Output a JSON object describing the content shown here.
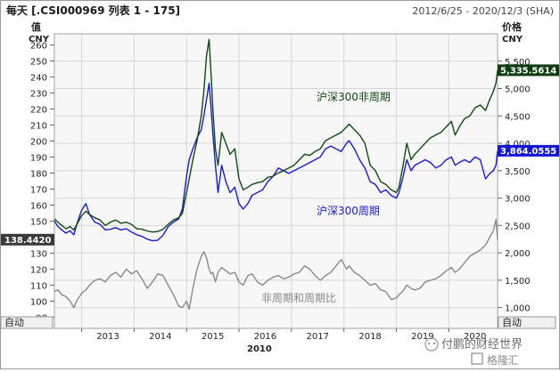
{
  "header": {
    "title": "每天 [.CSI000969 列表 1 - 175]",
    "date_range": "2012/6/25 - 2020/12/3 (SHA)"
  },
  "left_axis": {
    "label_line1": "值",
    "label_line2": "CNY",
    "auto_label": "自动",
    "ticks": [
      90,
      100,
      110,
      120,
      130,
      140,
      150,
      160,
      170,
      180,
      190,
      200,
      210,
      220,
      230,
      240,
      250,
      260
    ],
    "tick_labels": [
      "90",
      "100",
      "110",
      "120",
      "130",
      "140",
      "150",
      "160",
      "170",
      "180",
      "190",
      "200",
      "210",
      "220",
      "230",
      "240",
      "250",
      "260"
    ],
    "current_badge": "138.4420"
  },
  "right_axis": {
    "label_line1": "价格",
    "label_line2": "CNY",
    "auto_label": "自动",
    "ticks": [
      1000,
      1500,
      2000,
      2500,
      3000,
      3500,
      4000,
      4500,
      5000,
      5500
    ],
    "tick_labels": [
      "1,000",
      "1,500",
      "2,000",
      "2,500",
      "3,000",
      "3,500",
      "4,000",
      "4,500",
      "5,000",
      "5,500"
    ],
    "badge_green": "5,335.5614",
    "badge_blue": "3,864.0555"
  },
  "x_axis": {
    "year_labels": [
      "2013",
      "2014",
      "2015",
      "2016",
      "2017",
      "2018",
      "2019",
      "2020"
    ],
    "year_values": [
      2013,
      2014,
      2015,
      2016,
      2017,
      2018,
      2019,
      2020
    ],
    "center_label": "2010"
  },
  "annotations": {
    "green": "沪深300非周期",
    "blue": "沪深300周期",
    "gray": "非周期和周期比"
  },
  "watermark": {
    "line1": "付鹏的财经世界",
    "line2": "格隆汇"
  },
  "colors": {
    "green": "#0e4a12",
    "blue": "#1a1adc",
    "gray": "#8a8a8a",
    "grid": "#d6d6d6",
    "badge_green_bg": "#0f3d12",
    "badge_blue_bg": "#1515d6",
    "badge_dark_bg": "#3a3a3a"
  },
  "chart_data": {
    "type": "line",
    "xlim": [
      2012.48,
      2020.93
    ],
    "y_left_lim": [
      83,
      267
    ],
    "y_right_lim": [
      620,
      6000
    ],
    "series": [
      {
        "name": "沪深300非周期",
        "axis": "right",
        "x": [
          2012.48,
          2012.55,
          2012.62,
          2012.7,
          2012.78,
          2012.85,
          2012.92,
          2013.0,
          2013.08,
          2013.15,
          2013.25,
          2013.35,
          2013.45,
          2013.55,
          2013.65,
          2013.75,
          2013.85,
          2013.95,
          2014.05,
          2014.15,
          2014.25,
          2014.35,
          2014.45,
          2014.55,
          2014.65,
          2014.75,
          2014.85,
          2014.92,
          2015.0,
          2015.05,
          2015.12,
          2015.2,
          2015.28,
          2015.33,
          2015.38,
          2015.43,
          2015.47,
          2015.5,
          2015.55,
          2015.6,
          2015.67,
          2015.75,
          2015.83,
          2015.92,
          2016.0,
          2016.08,
          2016.17,
          2016.25,
          2016.35,
          2016.45,
          2016.55,
          2016.65,
          2016.75,
          2016.85,
          2016.95,
          2017.05,
          2017.15,
          2017.25,
          2017.35,
          2017.45,
          2017.55,
          2017.65,
          2017.75,
          2017.85,
          2017.95,
          2018.05,
          2018.1,
          2018.2,
          2018.3,
          2018.4,
          2018.5,
          2018.6,
          2018.7,
          2018.8,
          2018.9,
          2019.0,
          2019.05,
          2019.12,
          2019.2,
          2019.28,
          2019.35,
          2019.45,
          2019.55,
          2019.65,
          2019.75,
          2019.85,
          2019.95,
          2020.05,
          2020.12,
          2020.2,
          2020.3,
          2020.4,
          2020.5,
          2020.6,
          2020.7,
          2020.78,
          2020.85,
          2020.9,
          2020.93
        ],
        "y": [
          2620,
          2560,
          2500,
          2440,
          2480,
          2420,
          2540,
          2680,
          2760,
          2700,
          2640,
          2600,
          2500,
          2560,
          2600,
          2540,
          2560,
          2520,
          2440,
          2430,
          2400,
          2380,
          2390,
          2430,
          2520,
          2600,
          2640,
          2720,
          3100,
          3350,
          3700,
          4050,
          4500,
          4950,
          5600,
          5900,
          5200,
          4650,
          3900,
          3600,
          4200,
          4000,
          3800,
          3900,
          3350,
          3150,
          3200,
          3250,
          3280,
          3300,
          3380,
          3400,
          3460,
          3500,
          3550,
          3600,
          3700,
          3800,
          3780,
          3850,
          3900,
          4050,
          4100,
          4150,
          4200,
          4300,
          4350,
          4250,
          4150,
          4000,
          3600,
          3500,
          3300,
          3250,
          3150,
          3100,
          3200,
          3550,
          4000,
          3700,
          3800,
          3900,
          4000,
          4100,
          4150,
          4200,
          4300,
          4400,
          4150,
          4300,
          4450,
          4500,
          4650,
          4700,
          4600,
          4800,
          4950,
          5100,
          5335.5614
        ]
      },
      {
        "name": "沪深300周期",
        "axis": "right",
        "x": [
          2012.48,
          2012.55,
          2012.62,
          2012.7,
          2012.78,
          2012.85,
          2012.92,
          2013.0,
          2013.08,
          2013.15,
          2013.25,
          2013.35,
          2013.45,
          2013.55,
          2013.65,
          2013.75,
          2013.85,
          2013.95,
          2014.05,
          2014.15,
          2014.25,
          2014.35,
          2014.45,
          2014.55,
          2014.65,
          2014.75,
          2014.85,
          2014.92,
          2015.0,
          2015.05,
          2015.12,
          2015.2,
          2015.28,
          2015.33,
          2015.38,
          2015.43,
          2015.47,
          2015.5,
          2015.55,
          2015.6,
          2015.67,
          2015.75,
          2015.83,
          2015.92,
          2016.0,
          2016.08,
          2016.17,
          2016.25,
          2016.35,
          2016.45,
          2016.55,
          2016.65,
          2016.75,
          2016.85,
          2016.95,
          2017.05,
          2017.15,
          2017.25,
          2017.35,
          2017.45,
          2017.55,
          2017.65,
          2017.75,
          2017.85,
          2017.95,
          2018.05,
          2018.1,
          2018.2,
          2018.3,
          2018.4,
          2018.5,
          2018.6,
          2018.7,
          2018.8,
          2018.9,
          2019.0,
          2019.05,
          2019.12,
          2019.2,
          2019.28,
          2019.35,
          2019.45,
          2019.55,
          2019.65,
          2019.75,
          2019.85,
          2019.95,
          2020.05,
          2020.12,
          2020.2,
          2020.3,
          2020.4,
          2020.5,
          2020.6,
          2020.7,
          2020.78,
          2020.85,
          2020.9,
          2020.93
        ],
        "y": [
          2580,
          2480,
          2420,
          2360,
          2400,
          2330,
          2560,
          2780,
          2900,
          2700,
          2560,
          2520,
          2420,
          2430,
          2460,
          2420,
          2440,
          2380,
          2330,
          2300,
          2250,
          2220,
          2230,
          2320,
          2480,
          2560,
          2620,
          2800,
          3400,
          3700,
          3900,
          4100,
          4250,
          4500,
          4800,
          5100,
          4600,
          4200,
          3600,
          3100,
          3600,
          3300,
          3100,
          3200,
          2900,
          2800,
          2900,
          3050,
          3100,
          3150,
          3300,
          3400,
          3550,
          3500,
          3450,
          3500,
          3550,
          3600,
          3650,
          3700,
          3750,
          3900,
          3950,
          3900,
          3850,
          4000,
          4050,
          3900,
          3700,
          3550,
          3300,
          3250,
          3100,
          3150,
          3050,
          3000,
          3100,
          3350,
          3700,
          3500,
          3600,
          3650,
          3700,
          3650,
          3550,
          3600,
          3700,
          3750,
          3600,
          3650,
          3700,
          3650,
          3750,
          3700,
          3350,
          3450,
          3500,
          3600,
          3864.0555
        ]
      },
      {
        "name": "非周期和周期比",
        "axis": "left",
        "x": [
          2012.48,
          2012.55,
          2012.62,
          2012.7,
          2012.78,
          2012.85,
          2012.92,
          2013.0,
          2013.08,
          2013.15,
          2013.25,
          2013.35,
          2013.45,
          2013.55,
          2013.65,
          2013.75,
          2013.85,
          2013.95,
          2014.05,
          2014.15,
          2014.25,
          2014.35,
          2014.45,
          2014.55,
          2014.65,
          2014.75,
          2014.85,
          2014.92,
          2015.0,
          2015.05,
          2015.12,
          2015.2,
          2015.28,
          2015.33,
          2015.38,
          2015.43,
          2015.47,
          2015.5,
          2015.55,
          2015.6,
          2015.67,
          2015.75,
          2015.83,
          2015.92,
          2016.0,
          2016.08,
          2016.17,
          2016.25,
          2016.35,
          2016.45,
          2016.55,
          2016.65,
          2016.75,
          2016.85,
          2016.95,
          2017.05,
          2017.15,
          2017.25,
          2017.35,
          2017.45,
          2017.55,
          2017.65,
          2017.75,
          2017.85,
          2017.95,
          2018.05,
          2018.1,
          2018.2,
          2018.3,
          2018.4,
          2018.5,
          2018.6,
          2018.7,
          2018.8,
          2018.9,
          2019.0,
          2019.05,
          2019.12,
          2019.2,
          2019.28,
          2019.35,
          2019.45,
          2019.55,
          2019.65,
          2019.75,
          2019.85,
          2019.95,
          2020.05,
          2020.12,
          2020.2,
          2020.3,
          2020.4,
          2020.5,
          2020.6,
          2020.7,
          2020.78,
          2020.85,
          2020.9,
          2020.93
        ],
        "y": [
          106,
          107,
          104,
          103,
          100,
          96,
          101,
          105,
          107,
          110,
          113,
          114,
          112,
          116,
          118,
          115,
          120,
          117,
          119,
          114,
          108,
          112,
          117,
          116,
          110,
          104,
          97,
          96,
          100,
          95,
          108,
          120,
          128,
          131,
          127,
          120,
          117,
          118,
          112,
          118,
          121,
          119,
          117,
          118,
          112,
          110,
          116,
          117,
          112,
          110,
          113,
          115,
          116,
          114,
          115,
          117,
          118,
          122,
          120,
          116,
          113,
          116,
          118,
          122,
          126,
          120,
          122,
          118,
          116,
          113,
          110,
          111,
          107,
          106,
          101,
          102,
          104,
          106,
          110,
          108,
          107,
          108,
          112,
          113,
          114,
          116,
          119,
          121,
          118,
          120,
          124,
          128,
          130,
          132,
          135,
          140,
          144,
          151,
          138.442
        ]
      }
    ]
  }
}
